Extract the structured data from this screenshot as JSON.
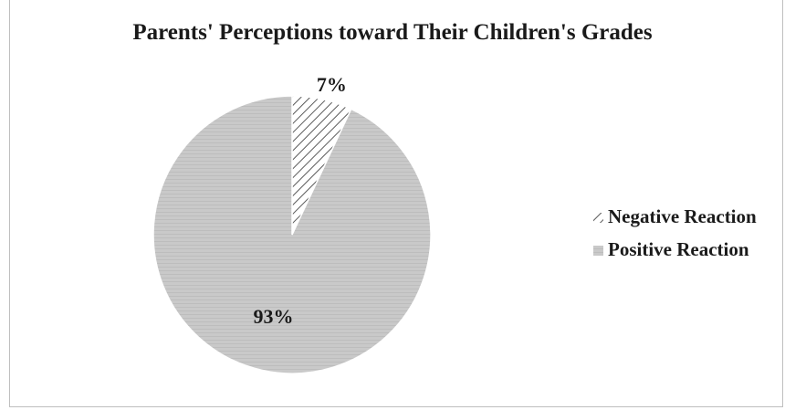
{
  "chart_data": {
    "type": "pie",
    "title": "Parents' Perceptions toward Their Children's Grades",
    "slices": [
      {
        "label": "Negative Reaction",
        "value": 7,
        "display": "7%",
        "fill": "hatched"
      },
      {
        "label": "Positive Reaction",
        "value": 93,
        "display": "93%",
        "fill": "#c6c6c6"
      }
    ],
    "legend_position": "right",
    "start_angle": "12 o'clock, clockwise"
  }
}
